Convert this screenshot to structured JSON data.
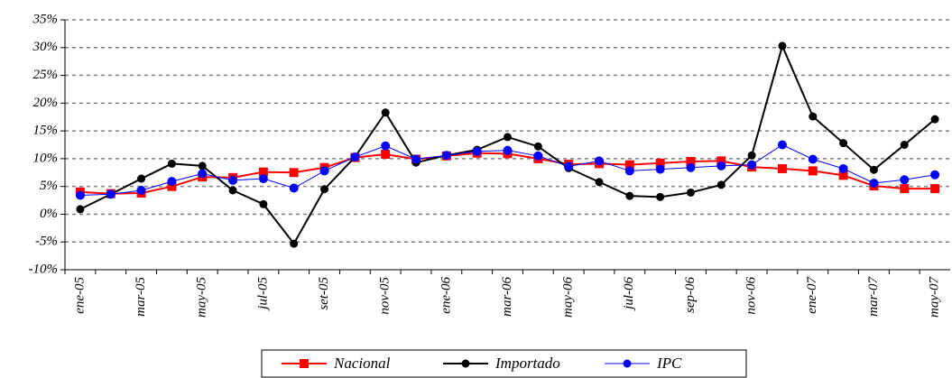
{
  "chart_data": {
    "type": "line",
    "categories": [
      "ene-05",
      null,
      "mar-05",
      null,
      "may-05",
      null,
      "jul-05",
      null,
      "set-05",
      null,
      "nov-05",
      null,
      "ene-06",
      null,
      "mar-06",
      null,
      "may-06",
      null,
      "jul-06",
      null,
      "sep-06",
      null,
      "nov-06",
      null,
      "ene-07",
      null,
      "mar-07",
      null,
      "may-07"
    ],
    "series": [
      {
        "name": "Nacional",
        "color": "#ff0000",
        "marker": "square",
        "values": [
          4,
          3.7,
          3.8,
          5,
          6.7,
          6.6,
          7.6,
          7.5,
          8.4,
          10.2,
          10.8,
          9.9,
          10.5,
          11,
          10.9,
          10,
          9,
          9.1,
          8.9,
          9.2,
          9.5,
          9.6,
          8.5,
          8.2,
          7.8,
          7,
          5.1,
          4.6,
          4.6
        ]
      },
      {
        "name": "Importado",
        "color": "#000000",
        "marker": "circle",
        "values": [
          0.9,
          3.6,
          6.4,
          9.1,
          8.7,
          4.3,
          1.8,
          -5.3,
          4.5,
          10.3,
          18.3,
          9.3,
          10.6,
          11.6,
          13.9,
          12.2,
          8.3,
          5.8,
          3.3,
          3.1,
          3.9,
          5.3,
          10.6,
          30.3,
          17.6,
          12.8,
          8,
          12.5,
          17.1
        ]
      },
      {
        "name": "IPC",
        "color": "#0000ff",
        "marker": "circle",
        "values": [
          3.4,
          3.6,
          4.3,
          5.9,
          7.3,
          6.1,
          6.4,
          4.7,
          7.8,
          10.3,
          12.3,
          9.9,
          10.6,
          11.3,
          11.5,
          10.5,
          8.6,
          9.6,
          7.8,
          8.1,
          8.4,
          8.7,
          8.9,
          12.5,
          9.9,
          8.2,
          5.6,
          6.2,
          7.1
        ]
      }
    ],
    "ylim": [
      -10,
      35
    ],
    "yticks": [
      {
        "value": -10,
        "label": "-10%"
      },
      {
        "value": -5,
        "label": "-5%"
      },
      {
        "value": 0,
        "label": "0%"
      },
      {
        "value": 5,
        "label": "5%"
      },
      {
        "value": 10,
        "label": "10%"
      },
      {
        "value": 15,
        "label": "15%"
      },
      {
        "value": 20,
        "label": "20%"
      },
      {
        "value": 25,
        "label": "25%"
      },
      {
        "value": 30,
        "label": "30%"
      },
      {
        "value": 35,
        "label": "35%"
      }
    ],
    "grid": true,
    "legend": "bottom"
  }
}
